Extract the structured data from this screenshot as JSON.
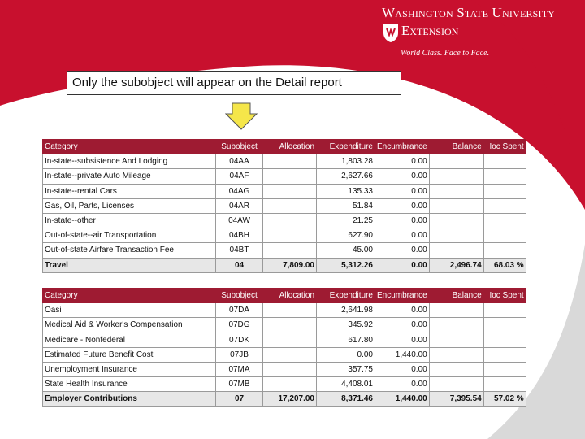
{
  "brand": {
    "university": "Washington State University",
    "unit": "Extension",
    "tagline": "World Class. Face to Face.",
    "brand_color": "#9e1b32"
  },
  "callout": {
    "text": "Only the subobject will appear on the Detail report"
  },
  "arrow": {
    "icon": "down-arrow-icon",
    "color": "#f5e64a"
  },
  "tables": [
    {
      "headers": [
        "Category",
        "Subobject",
        "Allocation",
        "Expenditure",
        "Encumbrance",
        "Balance",
        "Ioc Spent"
      ],
      "rows": [
        [
          "In-state--subsistence And Lodging",
          "04AA",
          "",
          "1,803.28",
          "0.00",
          "",
          ""
        ],
        [
          "In-state--private Auto Mileage",
          "04AF",
          "",
          "2,627.66",
          "0.00",
          "",
          ""
        ],
        [
          "In-state--rental Cars",
          "04AG",
          "",
          "135.33",
          "0.00",
          "",
          ""
        ],
        [
          "Gas, Oil, Parts, Licenses",
          "04AR",
          "",
          "51.84",
          "0.00",
          "",
          ""
        ],
        [
          "In-state--other",
          "04AW",
          "",
          "21.25",
          "0.00",
          "",
          ""
        ],
        [
          "Out-of-state--air Transportation",
          "04BH",
          "",
          "627.90",
          "0.00",
          "",
          ""
        ],
        [
          "Out-of-state Airfare Transaction Fee",
          "04BT",
          "",
          "45.00",
          "0.00",
          "",
          ""
        ]
      ],
      "total": [
        "Travel",
        "04",
        "7,809.00",
        "5,312.26",
        "0.00",
        "2,496.74",
        "68.03 %"
      ]
    },
    {
      "headers": [
        "Category",
        "Subobject",
        "Allocation",
        "Expenditure",
        "Encumbrance",
        "Balance",
        "Ioc Spent"
      ],
      "rows": [
        [
          "Oasi",
          "07DA",
          "",
          "2,641.98",
          "0.00",
          "",
          ""
        ],
        [
          "Medical Aid & Worker's Compensation",
          "07DG",
          "",
          "345.92",
          "0.00",
          "",
          ""
        ],
        [
          "Medicare - Nonfederal",
          "07DK",
          "",
          "617.80",
          "0.00",
          "",
          ""
        ],
        [
          "Estimated Future Benefit Cost",
          "07JB",
          "",
          "0.00",
          "1,440.00",
          "",
          ""
        ],
        [
          "Unemployment Insurance",
          "07MA",
          "",
          "357.75",
          "0.00",
          "",
          ""
        ],
        [
          "State Health Insurance",
          "07MB",
          "",
          "4,408.01",
          "0.00",
          "",
          ""
        ]
      ],
      "total": [
        "Employer Contributions",
        "07",
        "17,207.00",
        "8,371.46",
        "1,440.00",
        "7,395.54",
        "57.02 %"
      ]
    }
  ]
}
